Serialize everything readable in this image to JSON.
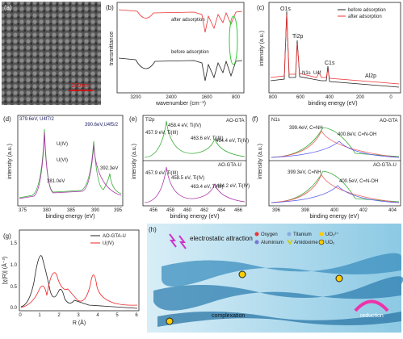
{
  "panels": {
    "a": {
      "label": "(a)",
      "scale": "200 nm"
    },
    "b": {
      "label": "(b)",
      "ylabel": "transmittance",
      "xlabel": "wavenumber (cm⁻¹)",
      "xticks": [
        "3200",
        "2400",
        "1600",
        "800"
      ],
      "after": "after adsorption",
      "before": "before adsorption"
    },
    "c": {
      "label": "(c)",
      "ylabel": "intensity (a.u.)",
      "xlabel": "binding energy (eV)",
      "xticks": [
        "800",
        "600",
        "400",
        "200",
        "0"
      ],
      "legend": [
        "before adsorption",
        "after adsorption"
      ],
      "peaks": [
        "O1s",
        "Ti2p",
        "N1s",
        "U4f",
        "C1s",
        "Al2p"
      ]
    },
    "d": {
      "label": "(d)",
      "ylabel": "intensity (a.u.)",
      "xlabel": "binding energy (eV)",
      "xticks": [
        "375",
        "380",
        "385",
        "390",
        "395"
      ],
      "notes": [
        "379.6eV, U4f7/2",
        "390.6eV,U4f5/2",
        "U(IV)",
        "U(VI)",
        "392.3eV",
        "381.0eV"
      ]
    },
    "e": {
      "label": "(e)",
      "ylabel": "intensity (a.u.)",
      "xlabel": "binding energy (eV)",
      "xticks": [
        "456",
        "458",
        "460",
        "462",
        "464",
        "466"
      ],
      "element": "Ti2p",
      "top": {
        "name": "AO-GTA",
        "notes": [
          "457.9 eV, Ti(III)",
          "458.4 eV, Ti(IV)",
          "463.6 eV, Ti(III)",
          "464.4 eV, Ti(IV)"
        ]
      },
      "bottom": {
        "name": "AO-GTA-U",
        "notes": [
          "457.9 eV, Ti(III)",
          "458.5 eV, Ti(IV)",
          "463.4 eV, Ti(III)",
          "464.2 eV, Ti(IV)"
        ]
      }
    },
    "f": {
      "label": "(f)",
      "ylabel": "intensity (a.u.)",
      "xlabel": "binding energy (eV)",
      "xticks": [
        "396",
        "398",
        "400",
        "402",
        "404"
      ],
      "element": "N1s",
      "top": {
        "name": "AO-GTA",
        "notes": [
          "399.4eV, C=NH",
          "400.8eV, C=N-OH"
        ]
      },
      "bottom": {
        "name": "AO-GTA-U",
        "notes": [
          "399.3eV, C=NH",
          "400.5eV, C=N-OH"
        ]
      }
    },
    "g": {
      "label": "(g)",
      "ylabel": "|χ(R)| (Å⁻³)",
      "xlabel": "R (Å)",
      "xticks": [
        "0",
        "1",
        "2",
        "3",
        "4",
        "5",
        "6"
      ],
      "yticks": [
        "0.0",
        "0.5",
        "1.0",
        "1.5"
      ],
      "legend": [
        "AO-GTA-U",
        "U(IV)"
      ]
    },
    "h": {
      "label": "(h)",
      "legend": [
        "Oxygen",
        "Titanium",
        "UO₂²⁺",
        "Aluminium",
        "Amidoxime",
        "UO₂"
      ],
      "notes": [
        "electrostatic attraction",
        "complexation",
        "reduction"
      ]
    }
  }
}
